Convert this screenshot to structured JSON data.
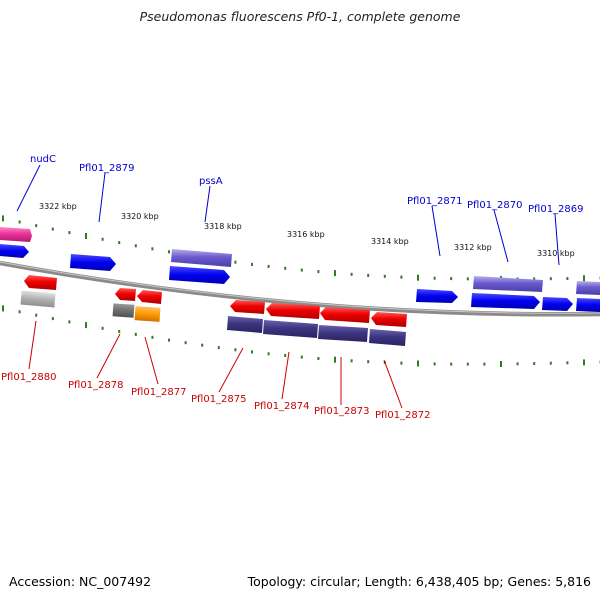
{
  "title": "Pseudomonas fluorescens Pf0-1, complete genome",
  "footer": {
    "accession": "Accession: NC_007492",
    "topology": "Topology: circular; Length: 6,438,405 bp; Genes: 5,816"
  },
  "scale_labels": [
    "3322 kbp",
    "3320 kbp",
    "3318 kbp",
    "3316 kbp",
    "3314 kbp",
    "3312 kbp",
    "3310 kbp"
  ],
  "gene_labels_top": [
    "nudC",
    "Pfl01_2879",
    "pssA",
    "Pfl01_2871",
    "Pfl01_2870",
    "Pfl01_2869"
  ],
  "gene_labels_bottom": [
    "Pfl01_2880",
    "Pfl01_2878",
    "Pfl01_2877",
    "Pfl01_2875",
    "Pfl01_2874",
    "Pfl01_2873",
    "Pfl01_2872"
  ],
  "colors": {
    "forward_label": "#0000cc",
    "reverse_label": "#cc0000",
    "backbone": "#8a8a8a",
    "tick": "#2e7d1e",
    "blue": "#0000ee",
    "purple": "#6a5acd",
    "dark_purple": "#3d3580",
    "red": "#ee0000",
    "pink": "#e8339a",
    "gray": "#b0b0b0",
    "dark_gray": "#707070",
    "orange": "#ff9900"
  }
}
